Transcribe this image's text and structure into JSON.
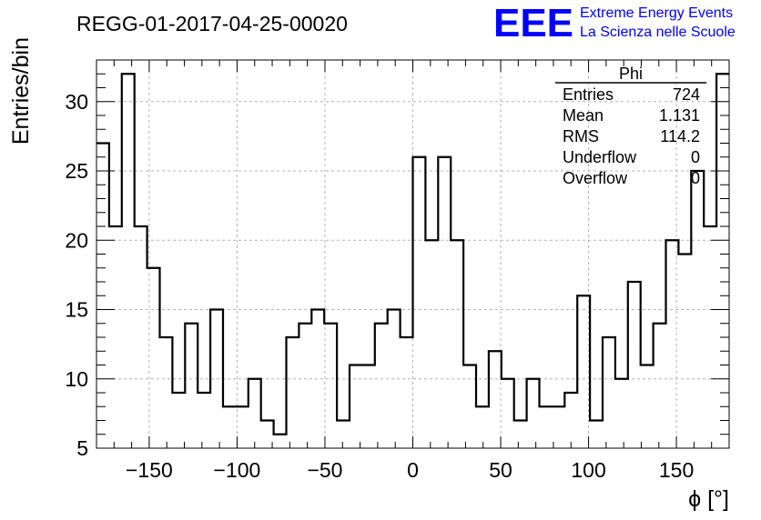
{
  "header": {
    "run_title": "REGG-01-2017-04-25-00020",
    "logo_text": "EEE",
    "logo_line1": "Extreme Energy Events",
    "logo_line2": "La Scienza nelle Scuole",
    "brand_color": "#0000ff"
  },
  "stats_box": {
    "name": "Phi",
    "rows": [
      {
        "label": "Entries",
        "value": "724"
      },
      {
        "label": "Mean",
        "value": "1.131"
      },
      {
        "label": "RMS",
        "value": "114.2"
      },
      {
        "label": "Underflow",
        "value": "0"
      },
      {
        "label": "Overflow",
        "value": "0"
      }
    ]
  },
  "chart_data": {
    "type": "bar",
    "style": "step-histogram",
    "xlabel": "ϕ [°]",
    "ylabel": "Entries/bin",
    "xlim": [
      -180,
      180
    ],
    "ylim": [
      5,
      33
    ],
    "bin_width": 7.2,
    "x_ticks": [
      -150,
      -100,
      -50,
      0,
      50,
      100,
      150
    ],
    "x_tick_labels": [
      "−150",
      "−100",
      "−50",
      "0",
      "50",
      "100",
      "150"
    ],
    "y_ticks": [
      5,
      10,
      15,
      20,
      25,
      30
    ],
    "grid": true,
    "values": [
      27,
      21,
      32,
      21,
      18,
      13,
      9,
      14,
      9,
      15,
      8,
      8,
      10,
      7,
      6,
      13,
      14,
      15,
      14,
      7,
      11,
      11,
      14,
      15,
      13,
      26,
      20,
      26,
      20,
      11,
      8,
      12,
      10,
      7,
      10,
      8,
      8,
      9,
      16,
      7,
      13,
      10,
      17,
      11,
      14,
      20,
      19,
      25,
      21,
      32
    ]
  }
}
